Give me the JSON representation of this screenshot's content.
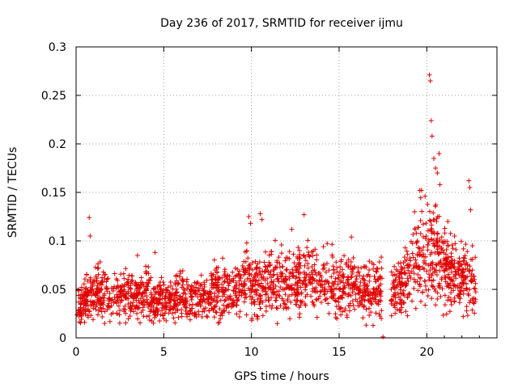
{
  "chart_data": {
    "type": "scatter",
    "title": "Day 236 of 2017, SRMTID for receiver ijmu",
    "xlabel": "GPS time / hours",
    "ylabel": "SRMTID / TECUs",
    "xlim": [
      0,
      24
    ],
    "ylim": [
      0,
      0.3
    ],
    "x_ticks": [
      "0",
      "5",
      "10",
      "15",
      "20"
    ],
    "x_tick_values": [
      0,
      5,
      10,
      15,
      20
    ],
    "y_ticks": [
      "0",
      "0.05",
      "0.1",
      "0.15",
      "0.2",
      "0.25",
      "0.3"
    ],
    "y_tick_values": [
      0,
      0.05,
      0.1,
      0.15,
      0.2,
      0.25,
      0.3
    ],
    "grid": true,
    "marker": "plus",
    "series": [
      {
        "name": "SRMTID",
        "color": "#e00000",
        "trend": [
          {
            "x": 0.0,
            "y": 0.033
          },
          {
            "x": 0.5,
            "y": 0.038
          },
          {
            "x": 1.0,
            "y": 0.045
          },
          {
            "x": 1.5,
            "y": 0.045
          },
          {
            "x": 2.0,
            "y": 0.043
          },
          {
            "x": 2.5,
            "y": 0.046
          },
          {
            "x": 3.0,
            "y": 0.044
          },
          {
            "x": 3.5,
            "y": 0.042
          },
          {
            "x": 4.0,
            "y": 0.045
          },
          {
            "x": 4.5,
            "y": 0.04
          },
          {
            "x": 5.0,
            "y": 0.038
          },
          {
            "x": 5.5,
            "y": 0.041
          },
          {
            "x": 6.0,
            "y": 0.042
          },
          {
            "x": 6.5,
            "y": 0.04
          },
          {
            "x": 7.0,
            "y": 0.04
          },
          {
            "x": 7.5,
            "y": 0.043
          },
          {
            "x": 8.0,
            "y": 0.048
          },
          {
            "x": 8.5,
            "y": 0.05
          },
          {
            "x": 9.0,
            "y": 0.05
          },
          {
            "x": 9.5,
            "y": 0.055
          },
          {
            "x": 9.8,
            "y": 0.075
          },
          {
            "x": 10.0,
            "y": 0.045
          },
          {
            "x": 10.3,
            "y": 0.06
          },
          {
            "x": 10.7,
            "y": 0.05
          },
          {
            "x": 11.0,
            "y": 0.058
          },
          {
            "x": 11.5,
            "y": 0.06
          },
          {
            "x": 12.0,
            "y": 0.055
          },
          {
            "x": 12.5,
            "y": 0.058
          },
          {
            "x": 13.0,
            "y": 0.06
          },
          {
            "x": 13.5,
            "y": 0.065
          },
          {
            "x": 14.0,
            "y": 0.06
          },
          {
            "x": 14.5,
            "y": 0.058
          },
          {
            "x": 15.0,
            "y": 0.055
          },
          {
            "x": 15.5,
            "y": 0.055
          },
          {
            "x": 16.0,
            "y": 0.052
          },
          {
            "x": 16.5,
            "y": 0.05
          },
          {
            "x": 17.0,
            "y": 0.05
          },
          {
            "x": 17.5,
            "y": 0.05
          },
          {
            "x": 18.0,
            "y": 0.05
          },
          {
            "x": 18.5,
            "y": 0.055
          },
          {
            "x": 19.0,
            "y": 0.065
          },
          {
            "x": 19.5,
            "y": 0.085
          },
          {
            "x": 20.0,
            "y": 0.09
          },
          {
            "x": 20.3,
            "y": 0.095
          },
          {
            "x": 20.6,
            "y": 0.085
          },
          {
            "x": 21.0,
            "y": 0.07
          },
          {
            "x": 21.5,
            "y": 0.065
          },
          {
            "x": 22.0,
            "y": 0.06
          },
          {
            "x": 22.5,
            "y": 0.055
          },
          {
            "x": 22.8,
            "y": 0.055
          }
        ],
        "outliers": [
          {
            "x": 0.75,
            "y": 0.124
          },
          {
            "x": 0.8,
            "y": 0.105
          },
          {
            "x": 3.5,
            "y": 0.085
          },
          {
            "x": 4.5,
            "y": 0.088
          },
          {
            "x": 9.85,
            "y": 0.125
          },
          {
            "x": 9.95,
            "y": 0.118
          },
          {
            "x": 10.5,
            "y": 0.128
          },
          {
            "x": 10.6,
            "y": 0.122
          },
          {
            "x": 12.3,
            "y": 0.112
          },
          {
            "x": 13.0,
            "y": 0.127
          },
          {
            "x": 15.7,
            "y": 0.104
          },
          {
            "x": 19.3,
            "y": 0.13
          },
          {
            "x": 19.6,
            "y": 0.152
          },
          {
            "x": 19.9,
            "y": 0.146
          },
          {
            "x": 20.15,
            "y": 0.271
          },
          {
            "x": 20.2,
            "y": 0.265
          },
          {
            "x": 20.25,
            "y": 0.224
          },
          {
            "x": 20.3,
            "y": 0.208
          },
          {
            "x": 20.4,
            "y": 0.185
          },
          {
            "x": 20.5,
            "y": 0.175
          },
          {
            "x": 20.6,
            "y": 0.17
          },
          {
            "x": 20.7,
            "y": 0.19
          },
          {
            "x": 20.75,
            "y": 0.158
          },
          {
            "x": 21.2,
            "y": 0.12
          },
          {
            "x": 22.4,
            "y": 0.162
          },
          {
            "x": 22.45,
            "y": 0.155
          },
          {
            "x": 22.5,
            "y": 0.132
          },
          {
            "x": 22.6,
            "y": 0.095
          },
          {
            "x": 17.5,
            "y": 0.001
          }
        ]
      }
    ]
  }
}
